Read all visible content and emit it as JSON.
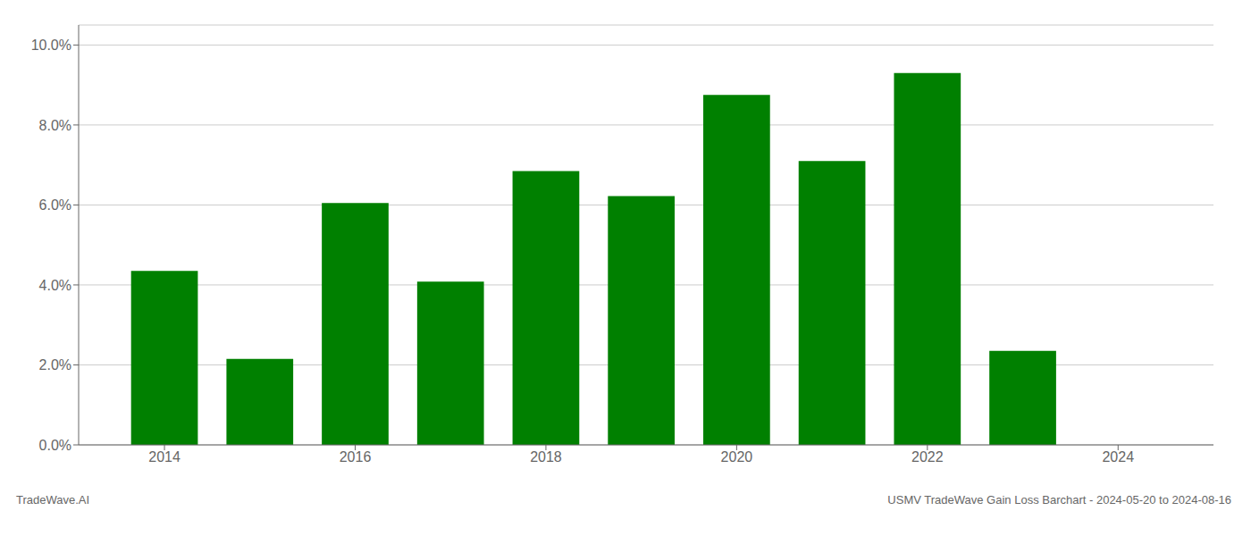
{
  "chart_data": {
    "type": "bar",
    "x": [
      2014,
      2015,
      2016,
      2017,
      2018,
      2019,
      2020,
      2021,
      2022,
      2023
    ],
    "values": [
      0.0435,
      0.0215,
      0.0605,
      0.0408,
      0.0685,
      0.0622,
      0.0875,
      0.071,
      0.093,
      0.0235
    ],
    "color": "#008000",
    "xlim": [
      2013.1,
      2025.0
    ],
    "xticks": [
      2014,
      2016,
      2018,
      2020,
      2022,
      2024
    ],
    "ylim": [
      0.0,
      0.105
    ],
    "yticks": [
      {
        "value": 0.0,
        "label": "0.0%"
      },
      {
        "value": 0.02,
        "label": "2.0%"
      },
      {
        "value": 0.04,
        "label": "4.0%"
      },
      {
        "value": 0.06,
        "label": "6.0%"
      },
      {
        "value": 0.08,
        "label": "8.0%"
      },
      {
        "value": 0.1,
        "label": "10.0%"
      }
    ],
    "grid": true,
    "annotations": [
      "TradeWave.AI",
      "USMV TradeWave Gain Loss Barchart - 2024-05-20 to 2024-08-16"
    ]
  }
}
